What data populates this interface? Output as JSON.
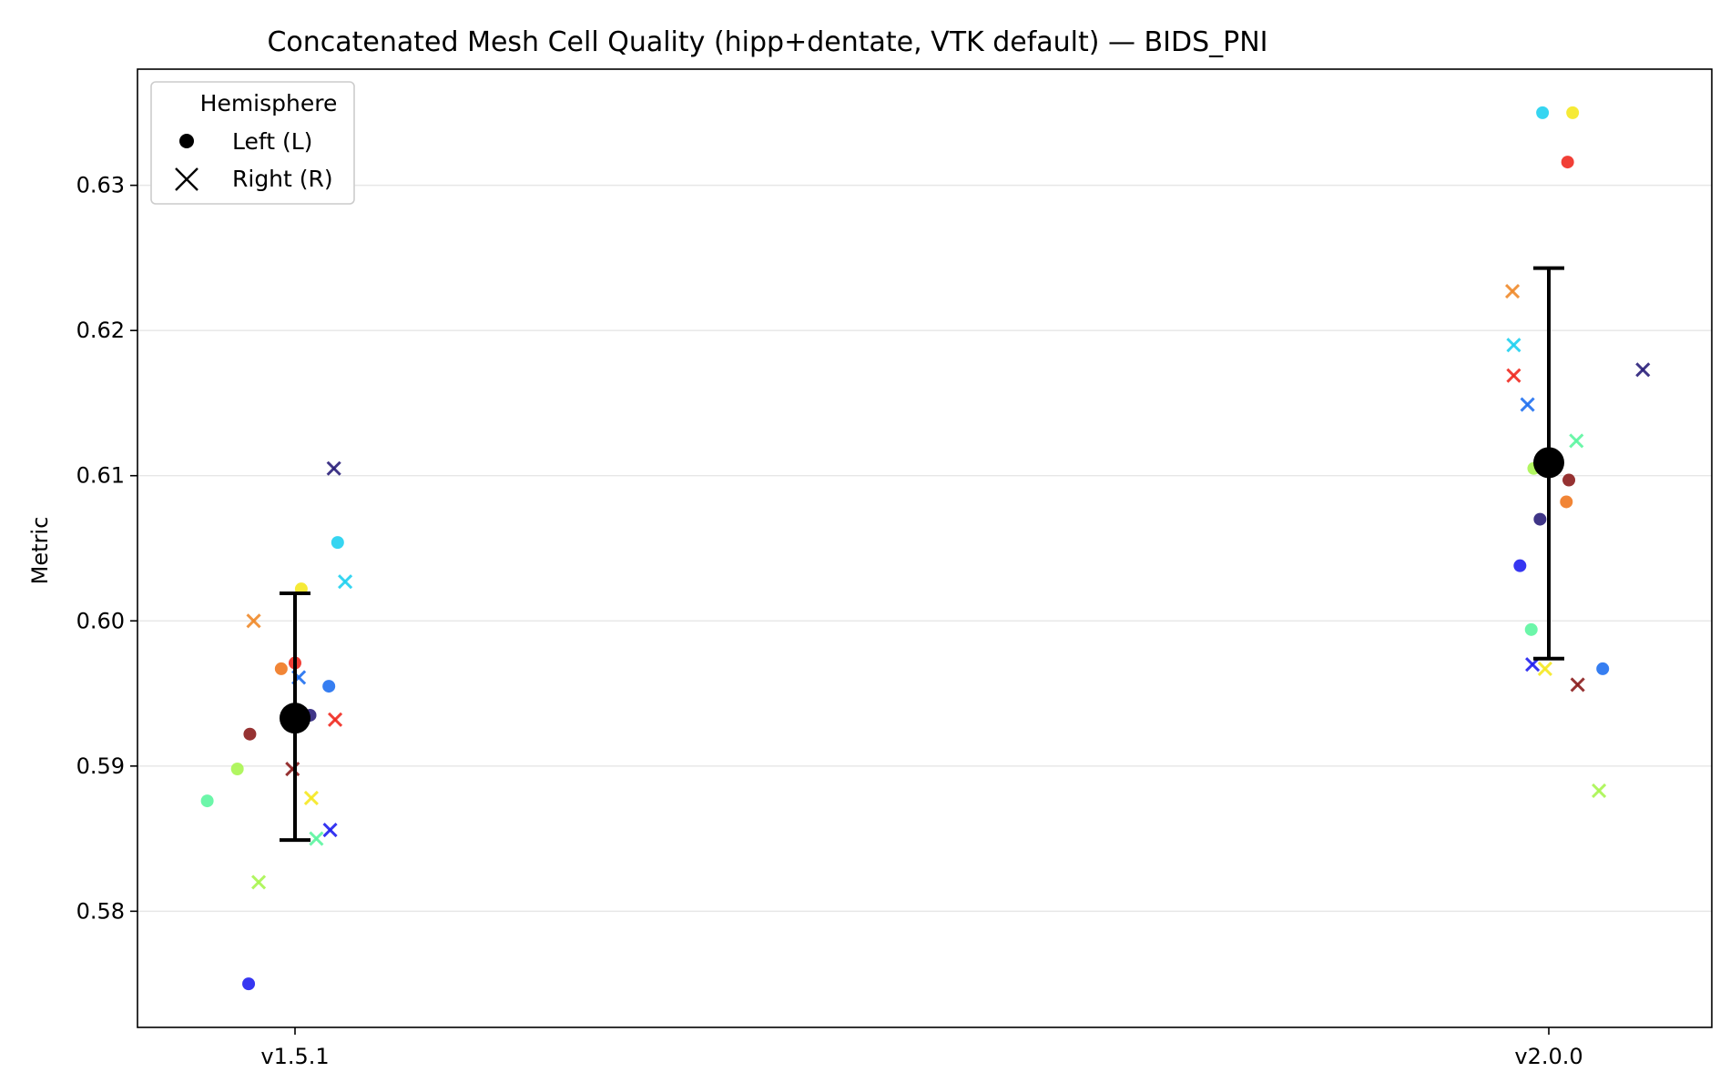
{
  "chart_data": {
    "type": "scatter",
    "title": "Concatenated Mesh Cell Quality (hipp+dentate, VTK default) — BIDS_PNI",
    "xlabel": "",
    "ylabel": "Metric",
    "categories": [
      "v1.5.1",
      "v2.0.0"
    ],
    "ylim": [
      0.572,
      0.638
    ],
    "yticks": [
      "0.58",
      "0.59",
      "0.60",
      "0.61",
      "0.62",
      "0.63"
    ],
    "ytick_values": [
      0.58,
      0.59,
      0.6,
      0.61,
      0.62,
      0.63
    ],
    "grid": "y",
    "legend": {
      "title": "Hemisphere",
      "placement": "top-left",
      "entries": [
        {
          "label": "Left (L)",
          "marker": "circle"
        },
        {
          "label": "Right (R)",
          "marker": "x"
        }
      ]
    },
    "points": [
      {
        "category": "v1.5.1",
        "hemi": "L",
        "jitter": -0.07,
        "y": 0.5876,
        "color": "#5cf5a0"
      },
      {
        "category": "v1.5.1",
        "hemi": "L",
        "jitter": -0.046,
        "y": 0.5898,
        "color": "#a8f550"
      },
      {
        "category": "v1.5.1",
        "hemi": "L",
        "jitter": -0.036,
        "y": 0.5922,
        "color": "#8b1c1c"
      },
      {
        "category": "v1.5.1",
        "hemi": "L",
        "jitter": -0.037,
        "y": 0.575,
        "color": "#2020f0"
      },
      {
        "category": "v1.5.1",
        "hemi": "L",
        "jitter": -0.011,
        "y": 0.5967,
        "color": "#f07820"
      },
      {
        "category": "v1.5.1",
        "hemi": "L",
        "jitter": 0.0,
        "y": 0.5971,
        "color": "#f02a20"
      },
      {
        "category": "v1.5.1",
        "hemi": "L",
        "jitter": 0.005,
        "y": 0.6022,
        "color": "#f5e820"
      },
      {
        "category": "v1.5.1",
        "hemi": "L",
        "jitter": 0.012,
        "y": 0.5935,
        "color": "#2a1f7a"
      },
      {
        "category": "v1.5.1",
        "hemi": "L",
        "jitter": 0.027,
        "y": 0.5955,
        "color": "#2070f0"
      },
      {
        "category": "v1.5.1",
        "hemi": "L",
        "jitter": 0.034,
        "y": 0.6054,
        "color": "#20d0f0"
      },
      {
        "category": "v1.5.1",
        "hemi": "R",
        "jitter": -0.033,
        "y": 0.6,
        "color": "#f08a2a"
      },
      {
        "category": "v1.5.1",
        "hemi": "R",
        "jitter": -0.029,
        "y": 0.582,
        "color": "#a8f550"
      },
      {
        "category": "v1.5.1",
        "hemi": "R",
        "jitter": -0.002,
        "y": 0.5898,
        "color": "#8b1c1c"
      },
      {
        "category": "v1.5.1",
        "hemi": "R",
        "jitter": 0.003,
        "y": 0.5961,
        "color": "#2070f0"
      },
      {
        "category": "v1.5.1",
        "hemi": "R",
        "jitter": 0.013,
        "y": 0.5878,
        "color": "#f5e820"
      },
      {
        "category": "v1.5.1",
        "hemi": "R",
        "jitter": 0.017,
        "y": 0.585,
        "color": "#5cf5a0"
      },
      {
        "category": "v1.5.1",
        "hemi": "R",
        "jitter": 0.028,
        "y": 0.5856,
        "color": "#2020f0"
      },
      {
        "category": "v1.5.1",
        "hemi": "R",
        "jitter": 0.032,
        "y": 0.5932,
        "color": "#f02a20"
      },
      {
        "category": "v1.5.1",
        "hemi": "R",
        "jitter": 0.031,
        "y": 0.6105,
        "color": "#2a1f7a"
      },
      {
        "category": "v1.5.1",
        "hemi": "R",
        "jitter": 0.04,
        "y": 0.6027,
        "color": "#20d0f0"
      },
      {
        "category": "v2.0.0",
        "hemi": "L",
        "jitter": -0.023,
        "y": 0.6038,
        "color": "#2020f0"
      },
      {
        "category": "v2.0.0",
        "hemi": "L",
        "jitter": -0.014,
        "y": 0.5994,
        "color": "#5cf5a0"
      },
      {
        "category": "v2.0.0",
        "hemi": "L",
        "jitter": -0.012,
        "y": 0.6105,
        "color": "#a8f550"
      },
      {
        "category": "v2.0.0",
        "hemi": "L",
        "jitter": -0.007,
        "y": 0.607,
        "color": "#2a1f7a"
      },
      {
        "category": "v2.0.0",
        "hemi": "L",
        "jitter": -0.005,
        "y": 0.635,
        "color": "#20d0f0"
      },
      {
        "category": "v2.0.0",
        "hemi": "L",
        "jitter": 0.014,
        "y": 0.6082,
        "color": "#f07820"
      },
      {
        "category": "v2.0.0",
        "hemi": "L",
        "jitter": 0.015,
        "y": 0.6316,
        "color": "#f02a20"
      },
      {
        "category": "v2.0.0",
        "hemi": "L",
        "jitter": 0.016,
        "y": 0.6097,
        "color": "#8b1c1c"
      },
      {
        "category": "v2.0.0",
        "hemi": "L",
        "jitter": 0.019,
        "y": 0.635,
        "color": "#f5e820"
      },
      {
        "category": "v2.0.0",
        "hemi": "L",
        "jitter": 0.043,
        "y": 0.5967,
        "color": "#2070f0"
      },
      {
        "category": "v2.0.0",
        "hemi": "R",
        "jitter": -0.029,
        "y": 0.6227,
        "color": "#f08a2a"
      },
      {
        "category": "v2.0.0",
        "hemi": "R",
        "jitter": -0.028,
        "y": 0.619,
        "color": "#20d0f0"
      },
      {
        "category": "v2.0.0",
        "hemi": "R",
        "jitter": -0.028,
        "y": 0.6169,
        "color": "#f02a20"
      },
      {
        "category": "v2.0.0",
        "hemi": "R",
        "jitter": -0.017,
        "y": 0.6149,
        "color": "#2070f0"
      },
      {
        "category": "v2.0.0",
        "hemi": "R",
        "jitter": -0.013,
        "y": 0.597,
        "color": "#2020f0"
      },
      {
        "category": "v2.0.0",
        "hemi": "R",
        "jitter": -0.003,
        "y": 0.5967,
        "color": "#f5e820"
      },
      {
        "category": "v2.0.0",
        "hemi": "R",
        "jitter": 0.022,
        "y": 0.6124,
        "color": "#5cf5a0"
      },
      {
        "category": "v2.0.0",
        "hemi": "R",
        "jitter": 0.023,
        "y": 0.5956,
        "color": "#8b1c1c"
      },
      {
        "category": "v2.0.0",
        "hemi": "R",
        "jitter": 0.04,
        "y": 0.5883,
        "color": "#a8f550"
      },
      {
        "category": "v2.0.0",
        "hemi": "R",
        "jitter": 0.075,
        "y": 0.6173,
        "color": "#2a1f7a"
      }
    ],
    "summary": [
      {
        "category": "v1.5.1",
        "mean": 0.5933,
        "lower": 0.5849,
        "upper": 0.6019
      },
      {
        "category": "v2.0.0",
        "mean": 0.6109,
        "lower": 0.5974,
        "upper": 0.6243
      }
    ]
  }
}
